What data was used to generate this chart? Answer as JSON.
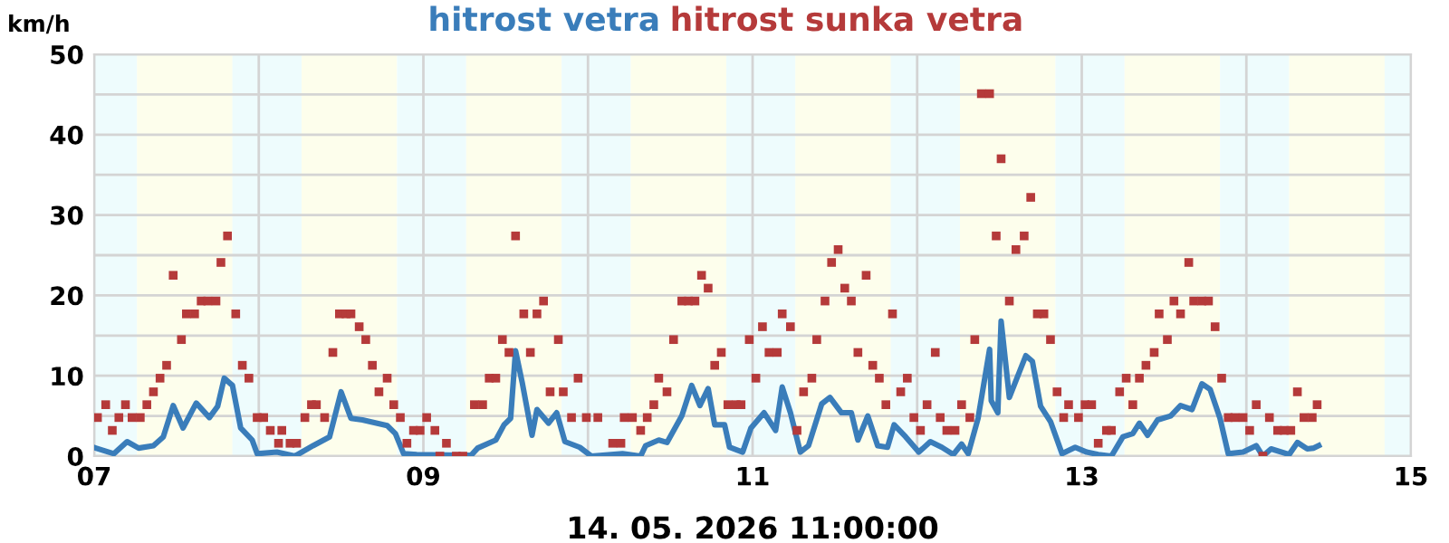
{
  "chart_data": {
    "type": "line",
    "xlabel": "14. 05. 2026 11:00:00",
    "ylabel": "km/h",
    "xlim": [
      7,
      15
    ],
    "xticks": [
      {
        "value": 7,
        "label": "07"
      },
      {
        "value": 8,
        "label": null
      },
      {
        "value": 9,
        "label": "09"
      },
      {
        "value": 10,
        "label": null
      },
      {
        "value": 11,
        "label": "11"
      },
      {
        "value": 12,
        "label": null
      },
      {
        "value": 13,
        "label": "13"
      },
      {
        "value": 14,
        "label": null
      },
      {
        "value": 15,
        "label": "15"
      }
    ],
    "ylim": [
      0,
      50
    ],
    "yticks": [
      0,
      {
        "value": 5,
        "label": null
      },
      10,
      {
        "value": 15,
        "label": null
      },
      20,
      {
        "value": 25,
        "label": null
      },
      30,
      {
        "value": 35,
        "label": null
      },
      40,
      {
        "value": 45,
        "label": null
      },
      50
    ],
    "grid": true,
    "legend": "top",
    "bands": [
      {
        "axis": "x",
        "from": 7.0,
        "to": 7.26,
        "color": "#eefcfd"
      },
      {
        "axis": "x",
        "from": 7.26,
        "to": 7.84,
        "color": "#fdfeec"
      },
      {
        "axis": "x",
        "from": 7.84,
        "to": 8.26,
        "color": "#eefcfd"
      },
      {
        "axis": "x",
        "from": 8.26,
        "to": 8.84,
        "color": "#fdfeec"
      },
      {
        "axis": "x",
        "from": 8.84,
        "to": 9.26,
        "color": "#eefcfd"
      },
      {
        "axis": "x",
        "from": 9.26,
        "to": 9.84,
        "color": "#fdfeec"
      },
      {
        "axis": "x",
        "from": 9.84,
        "to": 10.26,
        "color": "#eefcfd"
      },
      {
        "axis": "x",
        "from": 10.26,
        "to": 10.84,
        "color": "#fdfeec"
      },
      {
        "axis": "x",
        "from": 10.84,
        "to": 11.26,
        "color": "#eefcfd"
      },
      {
        "axis": "x",
        "from": 11.26,
        "to": 11.84,
        "color": "#fdfeec"
      },
      {
        "axis": "x",
        "from": 11.84,
        "to": 12.26,
        "color": "#eefcfd"
      },
      {
        "axis": "x",
        "from": 12.26,
        "to": 12.84,
        "color": "#fdfeec"
      },
      {
        "axis": "x",
        "from": 12.84,
        "to": 13.26,
        "color": "#eefcfd"
      },
      {
        "axis": "x",
        "from": 13.26,
        "to": 13.84,
        "color": "#fdfeec"
      },
      {
        "axis": "x",
        "from": 13.84,
        "to": 14.26,
        "color": "#eefcfd"
      },
      {
        "axis": "x",
        "from": 14.26,
        "to": 14.84,
        "color": "#fdfeec"
      },
      {
        "axis": "x",
        "from": 14.84,
        "to": 15.0,
        "color": "#eefcfd"
      }
    ],
    "series": [
      {
        "name": "hitrost vetra",
        "color": "#3a7dba",
        "marker": "none",
        "line_style": "solid",
        "x": [
          7.01,
          7.12,
          7.2,
          7.27,
          7.36,
          7.42,
          7.48,
          7.54,
          7.62,
          7.7,
          7.75,
          7.79,
          7.84,
          7.89,
          7.96,
          7.99,
          8.11,
          8.22,
          8.33,
          8.43,
          8.5,
          8.56,
          8.63,
          8.78,
          8.83,
          8.88,
          8.96,
          9.29,
          9.33,
          9.44,
          9.49,
          9.53,
          9.56,
          9.6,
          9.66,
          9.69,
          9.76,
          9.81,
          9.86,
          9.95,
          10.02,
          10.21,
          10.32,
          10.35,
          10.43,
          10.48,
          10.57,
          10.63,
          10.68,
          10.73,
          10.77,
          10.83,
          10.86,
          10.94,
          10.99,
          11.07,
          11.14,
          11.18,
          11.23,
          11.29,
          11.34,
          11.42,
          11.47,
          11.54,
          11.6,
          11.64,
          11.7,
          11.76,
          11.82,
          11.86,
          11.93,
          12.01,
          12.08,
          12.15,
          12.22,
          12.27,
          12.31,
          12.37,
          12.44,
          12.45,
          12.49,
          12.51,
          12.56,
          12.66,
          12.7,
          12.75,
          12.81,
          12.88,
          12.96,
          13.03,
          13.1,
          13.18,
          13.25,
          13.31,
          13.35,
          13.4,
          13.46,
          13.54,
          13.6,
          13.67,
          13.73,
          13.78,
          13.84,
          13.89,
          13.98,
          14.06,
          14.1,
          14.15,
          14.26,
          14.31,
          14.37,
          14.41,
          14.44
        ],
        "values": [
          1.0,
          0.3,
          1.8,
          1.0,
          1.3,
          2.4,
          6.3,
          3.5,
          6.6,
          4.8,
          6.2,
          9.7,
          8.8,
          3.5,
          2.0,
          0.3,
          0.5,
          0,
          1.3,
          2.4,
          8.0,
          4.7,
          4.5,
          3.8,
          2.8,
          0.3,
          0.2,
          0.1,
          1.0,
          2.0,
          3.9,
          4.7,
          13.1,
          9.2,
          2.6,
          5.8,
          4.1,
          5.4,
          1.8,
          1.1,
          0,
          0.3,
          0,
          1.3,
          2.0,
          1.7,
          5.0,
          8.8,
          6.3,
          8.4,
          3.9,
          3.9,
          1.1,
          0.5,
          3.5,
          5.4,
          3.2,
          8.6,
          5.4,
          0.5,
          1.3,
          6.5,
          7.3,
          5.4,
          5.4,
          2.0,
          5.0,
          1.3,
          1.1,
          3.9,
          2.4,
          0.5,
          1.8,
          1.1,
          0.2,
          1.5,
          0.3,
          4.7,
          13.3,
          6.9,
          5.4,
          16.8,
          7.3,
          12.5,
          11.8,
          6.2,
          4.3,
          0.3,
          1.1,
          0.5,
          0.2,
          0,
          2.4,
          2.8,
          4.1,
          2.6,
          4.5,
          5.0,
          6.3,
          5.8,
          9.0,
          8.3,
          4.7,
          0.3,
          0.5,
          1.3,
          0,
          0.9,
          0.2,
          1.7,
          0.9,
          1.0,
          1.3
        ]
      },
      {
        "name": "hitrost sunka vetra",
        "type": "scatter",
        "color": "#b53a3a",
        "marker": "square",
        "x": [
          7.02,
          7.07,
          7.11,
          7.15,
          7.19,
          7.23,
          7.28,
          7.32,
          7.36,
          7.4,
          7.44,
          7.48,
          7.53,
          7.56,
          7.61,
          7.65,
          7.69,
          7.74,
          7.77,
          7.81,
          7.86,
          7.9,
          7.94,
          7.99,
          8.03,
          8.07,
          8.12,
          8.14,
          8.19,
          8.23,
          8.28,
          8.32,
          8.35,
          8.4,
          8.45,
          8.49,
          8.53,
          8.56,
          8.61,
          8.65,
          8.69,
          8.73,
          8.78,
          8.82,
          8.86,
          8.9,
          8.94,
          8.98,
          9.02,
          9.07,
          9.1,
          9.14,
          9.2,
          9.24,
          9.31,
          9.36,
          9.4,
          9.44,
          9.48,
          9.52,
          9.56,
          9.61,
          9.65,
          9.69,
          9.73,
          9.77,
          9.82,
          9.85,
          9.9,
          9.94,
          9.99,
          10.06,
          10.15,
          10.2,
          10.22,
          10.27,
          10.32,
          10.36,
          10.4,
          10.43,
          10.48,
          10.52,
          10.57,
          10.61,
          10.65,
          10.69,
          10.73,
          10.77,
          10.81,
          10.85,
          10.9,
          10.93,
          10.98,
          11.02,
          11.06,
          11.1,
          11.15,
          11.18,
          11.23,
          11.27,
          11.31,
          11.36,
          11.39,
          11.44,
          11.48,
          11.52,
          11.56,
          11.6,
          11.64,
          11.69,
          11.73,
          11.77,
          11.81,
          11.85,
          11.9,
          11.94,
          11.98,
          12.02,
          12.06,
          12.11,
          12.14,
          12.18,
          12.23,
          12.27,
          12.32,
          12.35,
          12.39,
          12.44,
          12.48,
          12.51,
          12.56,
          12.6,
          12.65,
          12.69,
          12.73,
          12.77,
          12.81,
          12.85,
          12.89,
          12.92,
          12.98,
          13.02,
          13.06,
          13.1,
          13.15,
          13.18,
          13.23,
          13.27,
          13.31,
          13.35,
          13.39,
          13.44,
          13.47,
          13.52,
          13.56,
          13.6,
          13.65,
          13.68,
          13.73,
          13.77,
          13.81,
          13.85,
          13.89,
          13.93,
          13.98,
          14.02,
          14.06,
          14.1,
          14.14,
          14.19,
          14.23,
          14.27,
          14.31,
          14.35,
          14.4,
          14.43
        ],
        "values": [
          4.8,
          6.4,
          3.2,
          4.8,
          6.4,
          4.8,
          4.8,
          6.4,
          8.0,
          9.7,
          11.3,
          22.5,
          14.5,
          17.7,
          17.7,
          19.3,
          19.3,
          19.3,
          24.1,
          27.4,
          17.7,
          11.3,
          9.7,
          4.8,
          4.8,
          3.2,
          1.6,
          3.2,
          1.6,
          1.6,
          4.8,
          6.4,
          6.4,
          4.8,
          12.9,
          17.7,
          17.7,
          17.7,
          16.1,
          14.5,
          11.3,
          8.0,
          9.7,
          6.4,
          4.8,
          1.6,
          3.2,
          3.2,
          4.8,
          3.2,
          0,
          1.6,
          0,
          0,
          6.4,
          6.4,
          9.7,
          9.7,
          14.5,
          12.9,
          27.4,
          17.7,
          12.9,
          17.7,
          19.3,
          8.0,
          14.5,
          8.0,
          4.8,
          9.7,
          4.8,
          4.8,
          1.6,
          1.6,
          4.8,
          4.8,
          3.2,
          4.8,
          6.4,
          9.7,
          8.0,
          14.5,
          19.3,
          19.3,
          19.3,
          22.5,
          20.9,
          11.3,
          12.9,
          6.4,
          6.4,
          6.4,
          14.5,
          9.7,
          16.1,
          12.9,
          12.9,
          17.7,
          16.1,
          3.2,
          8.0,
          9.7,
          14.5,
          19.3,
          24.1,
          25.7,
          20.9,
          19.3,
          12.9,
          22.5,
          11.3,
          9.7,
          6.4,
          17.7,
          8.0,
          9.7,
          4.8,
          3.2,
          6.4,
          12.9,
          4.8,
          3.2,
          3.2,
          6.4,
          4.8,
          14.5,
          45.1,
          45.1,
          27.4,
          37.0,
          19.3,
          25.7,
          27.4,
          32.2,
          17.7,
          17.7,
          14.5,
          8.0,
          4.8,
          6.4,
          4.8,
          6.4,
          6.4,
          1.6,
          3.2,
          3.2,
          8.0,
          9.7,
          6.4,
          9.7,
          11.3,
          12.9,
          17.7,
          14.5,
          19.3,
          17.7,
          24.1,
          19.3,
          19.3,
          19.3,
          16.1,
          9.7,
          4.8,
          4.8,
          4.8,
          3.2,
          6.4,
          0,
          4.8,
          3.2,
          3.2,
          3.2,
          8.0,
          4.8,
          4.8,
          6.4
        ]
      }
    ]
  }
}
